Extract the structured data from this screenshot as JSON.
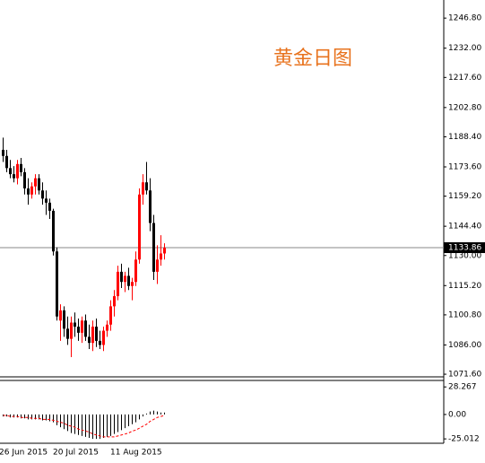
{
  "chart_data": [
    {
      "type": "candlestick",
      "annotation": "黄金日图",
      "categories": [
        "26 Jun 2015",
        null,
        null,
        null,
        null,
        null,
        null,
        null,
        null,
        null,
        null,
        null,
        null,
        null,
        null,
        "20 Jul 2015",
        null,
        null,
        null,
        null,
        null,
        null,
        null,
        null,
        null,
        null,
        null,
        null,
        null,
        null,
        null,
        "11 Aug 2015",
        null,
        null,
        null,
        null,
        null,
        null,
        null,
        null,
        null,
        null,
        null,
        null,
        null,
        null
      ],
      "open": [
        1182,
        1179,
        1173,
        1170,
        1168,
        1175,
        1171,
        1163,
        1160,
        1164,
        1168,
        1162,
        1158,
        1156,
        1152,
        1132,
        1098,
        1103,
        1094,
        1089,
        1097,
        1095,
        1092,
        1098,
        1090,
        1087,
        1095,
        1088,
        1086,
        1093,
        1096,
        1105,
        1110,
        1122,
        1117,
        1120,
        1115,
        1117,
        1128,
        1160,
        1166,
        1162,
        1146,
        1122,
        1128,
        1131
      ],
      "high": [
        1188,
        1182,
        1177,
        1174,
        1177,
        1178,
        1173,
        1168,
        1166,
        1170,
        1170,
        1166,
        1162,
        1158,
        1153,
        1134,
        1106,
        1105,
        1100,
        1100,
        1102,
        1099,
        1100,
        1101,
        1096,
        1098,
        1099,
        1093,
        1095,
        1098,
        1108,
        1113,
        1125,
        1126,
        1122,
        1124,
        1119,
        1132,
        1163,
        1170,
        1176,
        1168,
        1150,
        1135,
        1140,
        1136
      ],
      "low": [
        1176,
        1171,
        1168,
        1166,
        1165,
        1169,
        1160,
        1155,
        1158,
        1160,
        1160,
        1155,
        1150,
        1148,
        1130,
        1098,
        1088,
        1090,
        1086,
        1080,
        1090,
        1088,
        1087,
        1088,
        1084,
        1083,
        1085,
        1084,
        1083,
        1090,
        1093,
        1100,
        1108,
        1114,
        1112,
        1113,
        1108,
        1115,
        1126,
        1155,
        1160,
        1142,
        1118,
        1116,
        1125,
        1128
      ],
      "close": [
        1179,
        1173,
        1170,
        1168,
        1175,
        1171,
        1163,
        1160,
        1164,
        1168,
        1162,
        1158,
        1156,
        1152,
        1132,
        1100,
        1103,
        1094,
        1089,
        1097,
        1095,
        1092,
        1098,
        1090,
        1087,
        1095,
        1088,
        1086,
        1093,
        1096,
        1105,
        1110,
        1122,
        1117,
        1120,
        1115,
        1117,
        1128,
        1160,
        1166,
        1162,
        1146,
        1122,
        1128,
        1131,
        1133.86
      ],
      "up_color": "#ff0000",
      "down_color": "#000000",
      "last_price": 1133.86,
      "ylim": [
        1070.3,
        1255.7
      ],
      "yticks": [
        {
          "value": 1246.8,
          "label": "1246.80"
        },
        {
          "value": 1232,
          "label": "1232.00"
        },
        {
          "value": 1217.6,
          "label": "1217.60"
        },
        {
          "value": 1202.8,
          "label": "1202.80"
        },
        {
          "value": 1188.4,
          "label": "1188.40"
        },
        {
          "value": 1173.6,
          "label": "1173.60"
        },
        {
          "value": 1159.2,
          "label": "1159.20"
        },
        {
          "value": 1144.4,
          "label": "1144.40"
        },
        {
          "value": 1130,
          "label": "1130.00"
        },
        {
          "value": 1115.2,
          "label": "1115.20"
        },
        {
          "value": 1100.8,
          "label": "1100.80"
        },
        {
          "value": 1086,
          "label": "1086.00"
        },
        {
          "value": 1071.6,
          "label": "1071.60"
        }
      ]
    },
    {
      "type": "macd",
      "series": [
        {
          "color": "#000000",
          "values": [
            -2,
            -2,
            -3,
            -3,
            -3,
            -4,
            -4,
            -5,
            -5,
            -5,
            -5,
            -6,
            -6,
            -7,
            -8,
            -11,
            -13,
            -15,
            -17,
            -19,
            -20,
            -21,
            -22,
            -23,
            -24,
            -25,
            -25,
            -25,
            -24,
            -23,
            -22,
            -20,
            -18,
            -16,
            -14,
            -12,
            -10,
            -8,
            -5,
            -2,
            1,
            3,
            4,
            3,
            2,
            2
          ]
        },
        {
          "color": "#ff0000",
          "values": [
            -1,
            -1,
            -2,
            -2,
            -2,
            -3,
            -3,
            -3,
            -4,
            -4,
            -4,
            -5,
            -5,
            -5,
            -6,
            -7,
            -8,
            -9,
            -11,
            -12,
            -13,
            -15,
            -16,
            -17,
            -18,
            -20,
            -21,
            -22,
            -23,
            -23,
            -23,
            -23,
            -22,
            -21,
            -20,
            -19,
            -17,
            -16,
            -14,
            -12,
            -10,
            -7,
            -5,
            -3,
            -2,
            -1
          ]
        }
      ],
      "ylim": [
        -29.5,
        34.9
      ],
      "yticks": [
        28.267,
        {
          "value": 0,
          "label": "0.00"
        },
        -25.012
      ]
    }
  ]
}
